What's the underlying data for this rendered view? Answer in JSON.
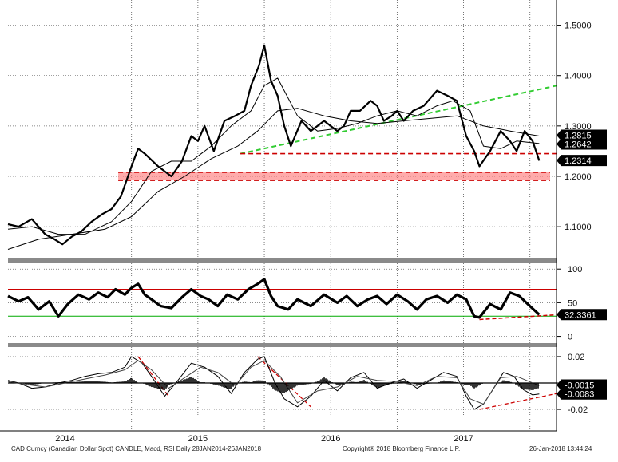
{
  "footer": {
    "description": "CAD Curncy (Canadian Dollar Spot) CANDLE, Macd, RSI  Daily 28JAN2014-26JAN2018",
    "copyright": "Copyright® 2018 Bloomberg Finance L.P.",
    "timestamp": "26-Jan-2018 13:44:24"
  },
  "chart_data": [
    {
      "type": "line",
      "panel": "price",
      "series": [
        {
          "name": "",
          "role": "price",
          "color": "#000000",
          "x": [
            2014.07,
            2014.15,
            2014.25,
            2014.35,
            2014.42,
            2014.48,
            2014.55,
            2014.62,
            2014.7,
            2014.78,
            2014.85,
            2014.92,
            2015.0,
            2015.05,
            2015.1,
            2015.2,
            2015.3,
            2015.38,
            2015.45,
            2015.5,
            2015.55,
            2015.62,
            2015.7,
            2015.78,
            2015.85,
            2015.9,
            2015.96,
            2016.0,
            2016.05,
            2016.1,
            2016.15,
            2016.2,
            2016.28,
            2016.35,
            2016.45,
            2016.55,
            2016.6,
            2016.65,
            2016.72,
            2016.8,
            2016.85,
            2016.9,
            2016.96,
            2017.0,
            2017.05,
            2017.12,
            2017.2,
            2017.3,
            2017.38,
            2017.45,
            2017.52,
            2017.58,
            2017.62,
            2017.7,
            2017.78,
            2017.85,
            2017.9,
            2017.96,
            2018.02,
            2018.07
          ],
          "y": [
            1.105,
            1.1,
            1.115,
            1.085,
            1.075,
            1.065,
            1.08,
            1.09,
            1.11,
            1.125,
            1.135,
            1.16,
            1.22,
            1.255,
            1.245,
            1.22,
            1.2,
            1.23,
            1.28,
            1.27,
            1.3,
            1.25,
            1.31,
            1.32,
            1.33,
            1.38,
            1.42,
            1.46,
            1.39,
            1.36,
            1.3,
            1.26,
            1.31,
            1.29,
            1.31,
            1.29,
            1.3,
            1.33,
            1.33,
            1.35,
            1.34,
            1.31,
            1.32,
            1.33,
            1.31,
            1.33,
            1.34,
            1.37,
            1.36,
            1.35,
            1.28,
            1.25,
            1.22,
            1.25,
            1.29,
            1.27,
            1.25,
            1.29,
            1.27,
            1.231
          ]
        },
        {
          "name": "",
          "role": "moving-average-short",
          "color": "#000000",
          "x": [
            2014.07,
            2014.25,
            2014.45,
            2014.65,
            2014.85,
            2015.0,
            2015.15,
            2015.3,
            2015.45,
            2015.6,
            2015.75,
            2015.9,
            2016.0,
            2016.1,
            2016.25,
            2016.4,
            2016.55,
            2016.7,
            2016.85,
            2017.0,
            2017.15,
            2017.3,
            2017.42,
            2017.55,
            2017.65,
            2017.78,
            2017.9,
            2018.07
          ],
          "y": [
            1.095,
            1.1,
            1.085,
            1.085,
            1.11,
            1.15,
            1.21,
            1.23,
            1.23,
            1.26,
            1.3,
            1.33,
            1.38,
            1.395,
            1.32,
            1.29,
            1.295,
            1.305,
            1.32,
            1.33,
            1.32,
            1.34,
            1.35,
            1.33,
            1.26,
            1.255,
            1.27,
            1.265
          ]
        },
        {
          "name": "",
          "role": "moving-average-long",
          "color": "#000000",
          "x": [
            2014.07,
            2014.3,
            2014.55,
            2014.8,
            2015.0,
            2015.2,
            2015.4,
            2015.6,
            2015.8,
            2015.95,
            2016.1,
            2016.25,
            2016.45,
            2016.65,
            2016.85,
            2017.05,
            2017.25,
            2017.45,
            2017.65,
            2017.85,
            2018.07
          ],
          "y": [
            1.055,
            1.075,
            1.085,
            1.095,
            1.12,
            1.17,
            1.2,
            1.235,
            1.26,
            1.29,
            1.33,
            1.335,
            1.32,
            1.31,
            1.305,
            1.31,
            1.315,
            1.32,
            1.3,
            1.29,
            1.28
          ]
        }
      ],
      "price_labels": [
        {
          "value": 1.2815,
          "text": "1.2815"
        },
        {
          "value": 1.2642,
          "text": "1.2642"
        },
        {
          "value": 1.2314,
          "text": "1.2314"
        }
      ],
      "annotations": [
        {
          "type": "trendline",
          "color": "#33cc33",
          "x": [
            2015.82,
            2018.2
          ],
          "y": [
            1.245,
            1.38
          ]
        },
        {
          "type": "horizontal",
          "color": "#cc0000",
          "x": [
            2015.82,
            2018.2
          ],
          "y": 1.245
        },
        {
          "type": "band",
          "color": "#ff6666",
          "x": [
            2014.9,
            2018.2
          ],
          "y": [
            1.192,
            1.208
          ]
        }
      ],
      "x_tick_labels": [
        "2014",
        "2015",
        "2016",
        "2017"
      ],
      "x_tick_values": [
        2014,
        2015,
        2016,
        2017
      ],
      "xlim": [
        2014.07,
        2018.2
      ],
      "y_tick_labels": [
        "1.5000",
        "1.4000",
        "1.3000",
        "1.2000",
        "1.1000"
      ],
      "y_tick_values": [
        1.5,
        1.4,
        1.3,
        1.2,
        1.1
      ],
      "ylim": [
        1.04,
        1.55
      ],
      "grid": true,
      "grid_style": "dotted"
    },
    {
      "type": "line",
      "panel": "rsi",
      "series": [
        {
          "name": "",
          "color": "#000000",
          "x": [
            2014.07,
            2014.15,
            2014.22,
            2014.3,
            2014.38,
            2014.45,
            2014.52,
            2014.6,
            2014.68,
            2014.75,
            2014.82,
            2014.88,
            2014.95,
            2015.0,
            2015.05,
            2015.1,
            2015.15,
            2015.22,
            2015.3,
            2015.38,
            2015.45,
            2015.52,
            2015.58,
            2015.65,
            2015.72,
            2015.8,
            2015.88,
            2015.95,
            2016.0,
            2016.05,
            2016.1,
            2016.18,
            2016.25,
            2016.35,
            2016.45,
            2016.55,
            2016.62,
            2016.7,
            2016.78,
            2016.85,
            2016.92,
            2017.0,
            2017.08,
            2017.15,
            2017.22,
            2017.3,
            2017.38,
            2017.45,
            2017.52,
            2017.58,
            2017.62,
            2017.7,
            2017.78,
            2017.85,
            2017.92,
            2018.0,
            2018.07
          ],
          "y": [
            60,
            52,
            58,
            40,
            52,
            30,
            48,
            62,
            55,
            65,
            58,
            70,
            62,
            72,
            78,
            62,
            55,
            45,
            42,
            58,
            70,
            60,
            55,
            45,
            62,
            55,
            70,
            78,
            85,
            60,
            45,
            40,
            55,
            45,
            62,
            50,
            60,
            45,
            55,
            60,
            48,
            62,
            52,
            40,
            55,
            60,
            50,
            62,
            55,
            30,
            28,
            48,
            40,
            65,
            60,
            45,
            32.34
          ]
        }
      ],
      "last_label": {
        "value": 32.3361,
        "text": "32.3361"
      },
      "annotations": [
        {
          "type": "trendline",
          "color": "#cc0000",
          "x": [
            2017.62,
            2018.2
          ],
          "y": [
            25,
            32
          ]
        }
      ],
      "reference_lines": [
        {
          "value": 70,
          "color": "#cc0000"
        },
        {
          "value": 30,
          "color": "#00aa00"
        }
      ],
      "y_tick_labels": [
        "100",
        "50",
        "0"
      ],
      "y_tick_values": [
        100,
        50,
        0
      ],
      "xlim": [
        2014.07,
        2018.2
      ],
      "ylim": [
        -10,
        105
      ],
      "grid": true,
      "grid_style": "dotted"
    },
    {
      "type": "line",
      "panel": "macd",
      "series": [
        {
          "name": "",
          "role": "macd",
          "color": "#000000",
          "x": [
            2014.07,
            2014.15,
            2014.25,
            2014.35,
            2014.45,
            2014.55,
            2014.65,
            2014.75,
            2014.85,
            2014.95,
            2015.0,
            2015.08,
            2015.15,
            2015.25,
            2015.35,
            2015.45,
            2015.55,
            2015.65,
            2015.75,
            2015.85,
            2015.95,
            2016.0,
            2016.08,
            2016.15,
            2016.25,
            2016.35,
            2016.45,
            2016.55,
            2016.65,
            2016.75,
            2016.85,
            2016.95,
            2017.05,
            2017.15,
            2017.25,
            2017.35,
            2017.45,
            2017.52,
            2017.58,
            2017.65,
            2017.72,
            2017.8,
            2017.88,
            2017.95,
            2018.02,
            2018.07
          ],
          "y": [
            0.002,
            0.0,
            -0.004,
            -0.003,
            0.0,
            0.002,
            0.005,
            0.007,
            0.008,
            0.012,
            0.02,
            0.015,
            0.005,
            -0.01,
            0.002,
            0.015,
            0.012,
            0.005,
            -0.008,
            0.008,
            0.018,
            0.02,
            0.0,
            -0.012,
            -0.018,
            -0.01,
            0.002,
            -0.006,
            0.004,
            0.008,
            -0.004,
            0.0,
            0.003,
            -0.004,
            0.002,
            0.008,
            0.005,
            -0.01,
            -0.02,
            -0.016,
            -0.005,
            0.008,
            0.005,
            -0.005,
            -0.009,
            -0.0083
          ]
        },
        {
          "name": "",
          "role": "signal",
          "color": "#444444",
          "x": [
            2014.07,
            2014.2,
            2014.35,
            2014.5,
            2014.65,
            2014.8,
            2014.95,
            2015.05,
            2015.15,
            2015.28,
            2015.4,
            2015.52,
            2015.65,
            2015.78,
            2015.9,
            2016.0,
            2016.12,
            2016.25,
            2016.4,
            2016.55,
            2016.7,
            2016.85,
            2017.0,
            2017.15,
            2017.3,
            2017.45,
            2017.55,
            2017.65,
            2017.78,
            2017.9,
            2018.07
          ],
          "y": [
            0.001,
            -0.001,
            -0.003,
            0.0,
            0.003,
            0.006,
            0.01,
            0.017,
            0.01,
            -0.004,
            0.004,
            0.012,
            0.008,
            -0.002,
            0.012,
            0.017,
            0.005,
            -0.015,
            -0.006,
            -0.003,
            0.005,
            0.002,
            0.001,
            -0.002,
            0.005,
            0.004,
            -0.012,
            -0.016,
            0.004,
            0.005,
            -0.002
          ]
        }
      ],
      "last_labels": [
        {
          "value": -0.0015,
          "text": "-0.0015"
        },
        {
          "value": -0.0083,
          "text": "-0.0083"
        }
      ],
      "annotations": [
        {
          "type": "trendline",
          "color": "#cc0000",
          "x": [
            2017.62,
            2018.2
          ],
          "y": [
            -0.02,
            -0.008
          ]
        },
        {
          "type": "trendline",
          "color": "#cc0000",
          "x": [
            2015.95,
            2016.35
          ],
          "y": [
            0.02,
            -0.018
          ]
        },
        {
          "type": "trendline",
          "color": "#cc0000",
          "x": [
            2015.05,
            2015.28
          ],
          "y": [
            0.02,
            -0.01
          ]
        }
      ],
      "y_tick_labels": [
        "0.02",
        "0",
        "-0.02"
      ],
      "y_tick_values": [
        0.02,
        0,
        -0.02
      ],
      "xlim": [
        2014.07,
        2018.2
      ],
      "ylim": [
        -0.026,
        0.026
      ],
      "grid": true,
      "grid_style": "dotted"
    }
  ]
}
